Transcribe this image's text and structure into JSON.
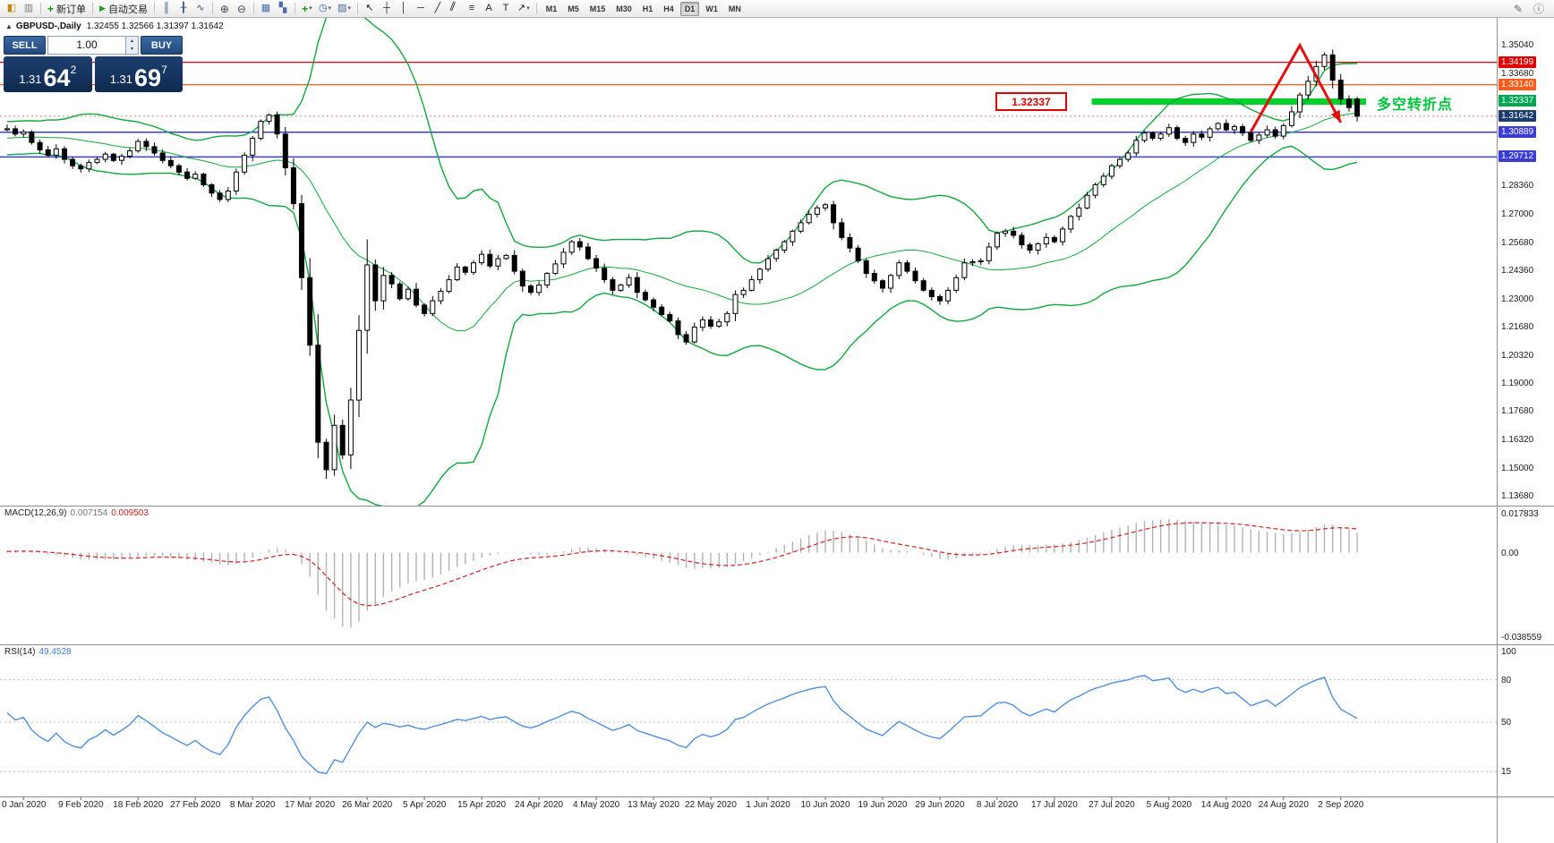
{
  "icons": {
    "new-chart-icon": "◧",
    "profiles-icon": "▥",
    "new-order-icon": "+",
    "autotrade-icon": "▶",
    "bar-chart-icon": "║",
    "candlestick-icon": "╂",
    "line-chart-icon": "∿",
    "zoom-in-icon": "⊕",
    "zoom-out-icon": "⊖",
    "tile-windows-icon": "▦",
    "auto-arrange-icon": "▚",
    "indicators-icon": "+",
    "periods-icon": "◷",
    "templates-icon": "▨",
    "cursor-icon": "↖",
    "crosshair-icon": "┼",
    "vline-icon": "│",
    "hline-icon": "─",
    "trendline-icon": "╱",
    "channel-icon": "∥",
    "fibonacci-icon": "≡",
    "text-icon": "A",
    "label-icon": "T",
    "arrows-icon": "↗",
    "dropdown-icon": "▾",
    "pencil-icon": "✎",
    "help-icon": "ⓘ",
    "oct-toggle-icon": "▲",
    "spin-up-icon": "▴",
    "spin-down-icon": "▾"
  },
  "toolbar": {
    "new_order": "新订单",
    "autotrade": "自动交易",
    "timeframes": [
      "M1",
      "M5",
      "M15",
      "M30",
      "H1",
      "H4",
      "D1",
      "W1",
      "MN"
    ],
    "active_timeframe": "D1"
  },
  "chart_header": {
    "symbol": "GBPUSD-,Daily",
    "ohlc": "1.32455 1.32566 1.31397 1.31642"
  },
  "quick_trade": {
    "sell_label": "SELL",
    "buy_label": "BUY",
    "volume": "1.00",
    "sell_price": {
      "small": "1.31",
      "big": "64",
      "sup": "2"
    },
    "buy_price": {
      "small": "1.31",
      "big": "69",
      "sup": "7"
    }
  },
  "annotations": {
    "price_callout": "1.32337",
    "turning_point": "多空转折点"
  },
  "price_axis": {
    "ticks": [
      {
        "label": "1.35040",
        "price": 1.3504
      },
      {
        "label": "1.33680",
        "price": 1.3368
      },
      {
        "label": "1.28360",
        "price": 1.2836
      },
      {
        "label": "1.27000",
        "price": 1.27
      },
      {
        "label": "1.25680",
        "price": 1.2568
      },
      {
        "label": "1.24360",
        "price": 1.2436
      },
      {
        "label": "1.23000",
        "price": 1.23
      },
      {
        "label": "1.21680",
        "price": 1.2168
      },
      {
        "label": "1.20320",
        "price": 1.2032
      },
      {
        "label": "1.19000",
        "price": 1.19
      },
      {
        "label": "1.17680",
        "price": 1.1768
      },
      {
        "label": "1.16320",
        "price": 1.1632
      },
      {
        "label": "1.15000",
        "price": 1.15
      },
      {
        "label": "1.13680",
        "price": 1.1368
      }
    ],
    "tags": [
      {
        "label": "1.34199",
        "price": 1.34199,
        "bg": "#e00000"
      },
      {
        "label": "1.33140",
        "price": 1.3314,
        "bg": "#ff5c1a"
      },
      {
        "label": "1.32337",
        "price": 1.32337,
        "bg": "#00a651"
      },
      {
        "label": "1.31642",
        "price": 1.31642,
        "bg": "#1c3c6e"
      },
      {
        "label": "1.30889",
        "price": 1.30889,
        "bg": "#3b3bd6"
      },
      {
        "label": "1.29712",
        "price": 1.29712,
        "bg": "#3b3bd6"
      }
    ]
  },
  "chart_data": {
    "type": "candlestick",
    "symbol": "GBPUSD",
    "timeframe": "Daily",
    "visible_price_range": [
      1.132,
      1.363
    ],
    "closes_prehistory": [
      1.306,
      1.3075,
      1.305,
      1.308,
      1.31,
      1.3085,
      1.312,
      1.314,
      1.311,
      1.309,
      1.3065,
      1.304,
      1.3055,
      1.302,
      1.3,
      1.3025,
      1.301,
      1.299,
      1.3015,
      1.304,
      1.306,
      1.308,
      1.31,
      1.312,
      1.3095,
      1.307,
      1.3085,
      1.3105,
      1.309,
      1.31
    ],
    "closes": [
      1.3105,
      1.308,
      1.309,
      1.304,
      1.3005,
      1.298,
      1.301,
      1.296,
      1.293,
      1.2915,
      1.2945,
      1.296,
      1.2985,
      1.2955,
      1.2975,
      1.3,
      1.3045,
      1.302,
      1.299,
      1.2955,
      1.293,
      1.29,
      1.287,
      1.289,
      1.284,
      1.28,
      1.277,
      1.281,
      1.29,
      1.298,
      1.306,
      1.314,
      1.317,
      1.308,
      1.292,
      1.275,
      1.24,
      1.208,
      1.162,
      1.149,
      1.17,
      1.156,
      1.182,
      1.215,
      1.246,
      1.229,
      1.241,
      1.237,
      1.23,
      1.2345,
      1.227,
      1.223,
      1.229,
      1.2335,
      1.239,
      1.245,
      1.2425,
      1.247,
      1.251,
      1.2455,
      1.249,
      1.2505,
      1.243,
      1.236,
      1.233,
      1.2365,
      1.242,
      1.2465,
      1.252,
      1.257,
      1.2545,
      1.249,
      1.2445,
      1.239,
      1.234,
      1.2365,
      1.24,
      1.233,
      1.2295,
      1.226,
      1.2225,
      1.2195,
      1.213,
      1.2095,
      1.2165,
      1.22,
      1.217,
      1.219,
      1.223,
      1.232,
      1.234,
      1.239,
      1.244,
      1.249,
      1.253,
      1.257,
      1.262,
      1.266,
      1.27,
      1.273,
      1.2745,
      1.266,
      1.259,
      1.254,
      1.248,
      1.242,
      1.2385,
      1.235,
      1.241,
      1.247,
      1.243,
      1.2385,
      1.234,
      1.231,
      1.229,
      1.234,
      1.24,
      1.247,
      1.2475,
      1.248,
      1.2545,
      1.261,
      1.262,
      1.26,
      1.2555,
      1.253,
      1.256,
      1.259,
      1.257,
      1.263,
      1.269,
      1.273,
      1.279,
      1.284,
      1.288,
      1.293,
      1.296,
      1.299,
      1.305,
      1.3085,
      1.306,
      1.308,
      1.311,
      1.306,
      1.304,
      1.308,
      1.3065,
      1.3105,
      1.313,
      1.31,
      1.3115,
      1.3085,
      1.305,
      1.3075,
      1.31,
      1.307,
      1.312,
      1.3185,
      1.3265,
      1.333,
      1.34,
      1.3455,
      1.3335,
      1.3245,
      1.3205,
      1.31642
    ],
    "last_candle": {
      "open": 1.32455,
      "high": 1.32566,
      "low": 1.31397,
      "close": 1.31642
    },
    "hlines": [
      {
        "price": 1.34199,
        "color": "#dd0000",
        "width": 1.3
      },
      {
        "price": 1.3314,
        "color": "#ff5c1a",
        "width": 1.3
      },
      {
        "price": 1.30889,
        "color": "#3b3bd6",
        "width": 1.5
      },
      {
        "price": 1.29712,
        "color": "#3b3bd6",
        "width": 1.5
      }
    ],
    "bid_line": {
      "price": 1.31642,
      "color": "#d08080"
    },
    "green_zone": {
      "price": 1.32337,
      "from_index": 133,
      "color": "#00d229",
      "thickness": 7
    },
    "trend_arrow": {
      "points": [
        [
          152,
          1.309
        ],
        [
          158,
          1.35
        ],
        [
          163,
          1.3135
        ]
      ],
      "color": "#e01010"
    },
    "bollinger": {
      "period": 20,
      "deviation": 2,
      "color": "#0fa83c"
    },
    "dates": [
      "0 Jan 2020",
      "9 Feb 2020",
      "18 Feb 2020",
      "27 Feb 2020",
      "8 Mar 2020",
      "17 Mar 2020",
      "26 Mar 2020",
      "5 Apr 2020",
      "15 Apr 2020",
      "24 Apr 2020",
      "4 May 2020",
      "13 May 2020",
      "22 May 2020",
      "1 Jun 2020",
      "10 Jun 2020",
      "19 Jun 2020",
      "29 Jun 2020",
      "8 Jul 2020",
      "17 Jul 2020",
      "27 Jul 2020",
      "5 Aug 2020",
      "14 Aug 2020",
      "24 Aug 2020",
      "2 Sep 2020"
    ]
  },
  "indicators": {
    "macd": {
      "label": "MACD(12,26,9)",
      "value_main": "0.007154",
      "value_signal": "0.009503",
      "scale": [
        {
          "label": "0.017833",
          "value": 0.017833
        },
        {
          "label": "0.00",
          "value": 0.0
        },
        {
          "label": "-0.038559",
          "value": -0.038559
        }
      ],
      "histogram_color": "#b2b2b2",
      "signal_color": "#d42020"
    },
    "rsi": {
      "label": "RSI(14)",
      "value": "49.4528",
      "levels": [
        {
          "label": "100",
          "value": 100
        },
        {
          "label": "80",
          "value": 80
        },
        {
          "label": "50",
          "value": 50
        },
        {
          "label": "15",
          "value": 15
        }
      ],
      "line_color": "#4f8fdc",
      "level_color": "#bbbbbb"
    }
  }
}
